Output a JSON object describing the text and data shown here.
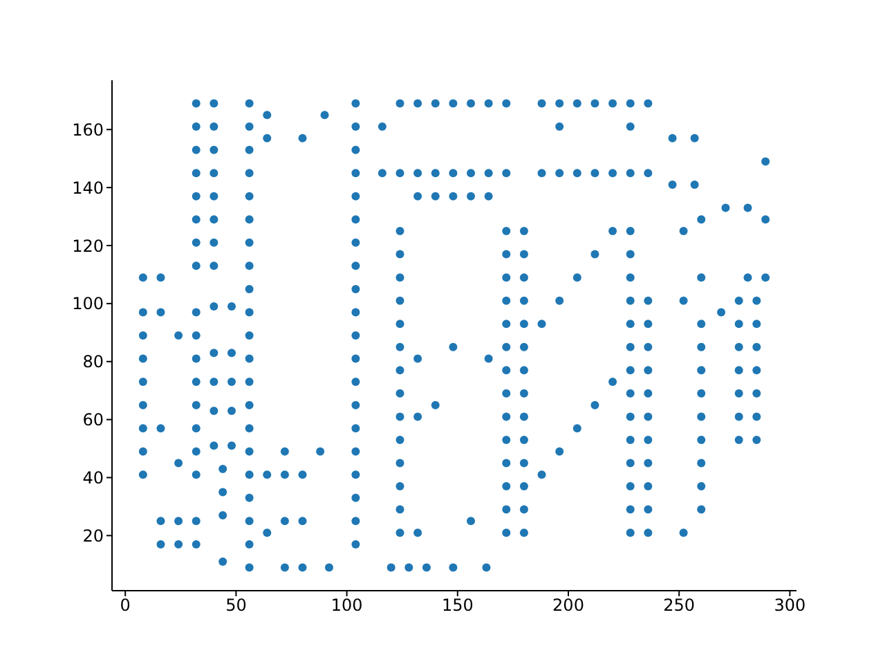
{
  "chart_data": {
    "type": "scatter",
    "xlim": [
      -6,
      303
    ],
    "ylim": [
      1,
      177
    ],
    "xticks": [
      0,
      50,
      100,
      150,
      200,
      250,
      300
    ],
    "yticks": [
      20,
      40,
      60,
      80,
      100,
      120,
      140,
      160
    ],
    "grid": false,
    "legend": false,
    "marker": "circle",
    "series": [
      {
        "color": "#1f77b4",
        "x": [
          32,
          40,
          56,
          104,
          124,
          132,
          140,
          148,
          156,
          164,
          172,
          188,
          196,
          204,
          212,
          220,
          228,
          236,
          64,
          90,
          32,
          40,
          56,
          104,
          116,
          196,
          228,
          64,
          80,
          247,
          257,
          32,
          40,
          56,
          104,
          289,
          32,
          40,
          56,
          104,
          116,
          124,
          132,
          140,
          148,
          156,
          164,
          172,
          188,
          196,
          204,
          212,
          220,
          228,
          236,
          247,
          257,
          32,
          40,
          56,
          104,
          132,
          140,
          148,
          156,
          164,
          271,
          281,
          32,
          40,
          56,
          104,
          260,
          289,
          124,
          172,
          180,
          220,
          228,
          252,
          32,
          40,
          56,
          104,
          124,
          172,
          180,
          212,
          228,
          32,
          40,
          56,
          104,
          8,
          16,
          124,
          172,
          180,
          204,
          228,
          260,
          281,
          289,
          56,
          104,
          124,
          172,
          180,
          196,
          228,
          236,
          252,
          277,
          285,
          40,
          48,
          8,
          16,
          32,
          56,
          104,
          269,
          124,
          172,
          180,
          188,
          228,
          236,
          260,
          277,
          285,
          8,
          24,
          32,
          56,
          104,
          124,
          148,
          172,
          180,
          228,
          236,
          260,
          277,
          285,
          40,
          48,
          8,
          32,
          56,
          104,
          132,
          164,
          124,
          172,
          180,
          228,
          236,
          260,
          277,
          285,
          8,
          32,
          40,
          48,
          56,
          104,
          220,
          124,
          172,
          180,
          228,
          236,
          260,
          277,
          285,
          8,
          32,
          56,
          104,
          140,
          212,
          40,
          48,
          124,
          132,
          172,
          180,
          228,
          236,
          260,
          277,
          285,
          8,
          16,
          32,
          56,
          104,
          204,
          124,
          172,
          180,
          228,
          236,
          260,
          277,
          285,
          40,
          48,
          8,
          32,
          56,
          72,
          88,
          104,
          196,
          24,
          124,
          172,
          180,
          228,
          236,
          260,
          44,
          8,
          32,
          56,
          64,
          72,
          80,
          104,
          188,
          124,
          172,
          180,
          228,
          236,
          260,
          44,
          56,
          104,
          124,
          172,
          180,
          228,
          236,
          260,
          44,
          16,
          24,
          32,
          56,
          72,
          80,
          104,
          156,
          64,
          124,
          132,
          172,
          180,
          228,
          236,
          252,
          16,
          24,
          32,
          56,
          104,
          44,
          56,
          72,
          80,
          92,
          120,
          128,
          136,
          148,
          163
        ],
        "values": [
          169,
          169,
          169,
          169,
          169,
          169,
          169,
          169,
          169,
          169,
          169,
          169,
          169,
          169,
          169,
          169,
          169,
          169,
          165,
          165,
          161,
          161,
          161,
          161,
          161,
          161,
          161,
          157,
          157,
          157,
          157,
          153,
          153,
          153,
          153,
          149,
          145,
          145,
          145,
          145,
          145,
          145,
          145,
          145,
          145,
          145,
          145,
          145,
          145,
          145,
          145,
          145,
          145,
          145,
          145,
          141,
          141,
          137,
          137,
          137,
          137,
          137,
          137,
          137,
          137,
          137,
          133,
          133,
          129,
          129,
          129,
          129,
          129,
          129,
          125,
          125,
          125,
          125,
          125,
          125,
          121,
          121,
          121,
          121,
          117,
          117,
          117,
          117,
          117,
          113,
          113,
          113,
          113,
          109,
          109,
          109,
          109,
          109,
          109,
          109,
          109,
          109,
          109,
          105,
          105,
          101,
          101,
          101,
          101,
          101,
          101,
          101,
          101,
          101,
          99,
          99,
          97,
          97,
          97,
          97,
          97,
          97,
          93,
          93,
          93,
          93,
          93,
          93,
          93,
          93,
          93,
          89,
          89,
          89,
          89,
          89,
          85,
          85,
          85,
          85,
          85,
          85,
          85,
          85,
          85,
          83,
          83,
          81,
          81,
          81,
          81,
          81,
          81,
          77,
          77,
          77,
          77,
          77,
          77,
          77,
          77,
          73,
          73,
          73,
          73,
          73,
          73,
          73,
          69,
          69,
          69,
          69,
          69,
          69,
          69,
          69,
          65,
          65,
          65,
          65,
          65,
          65,
          63,
          63,
          61,
          61,
          61,
          61,
          61,
          61,
          61,
          61,
          61,
          57,
          57,
          57,
          57,
          57,
          57,
          53,
          53,
          53,
          53,
          53,
          53,
          53,
          53,
          51,
          51,
          49,
          49,
          49,
          49,
          49,
          49,
          49,
          45,
          45,
          45,
          45,
          45,
          45,
          45,
          43,
          41,
          41,
          41,
          41,
          41,
          41,
          41,
          41,
          37,
          37,
          37,
          37,
          37,
          37,
          35,
          33,
          33,
          29,
          29,
          29,
          29,
          29,
          29,
          27,
          25,
          25,
          25,
          25,
          25,
          25,
          25,
          25,
          21,
          21,
          21,
          21,
          21,
          21,
          21,
          21,
          17,
          17,
          17,
          17,
          17,
          11,
          9,
          9,
          9,
          9,
          9,
          9,
          9,
          9,
          9
        ]
      }
    ]
  }
}
